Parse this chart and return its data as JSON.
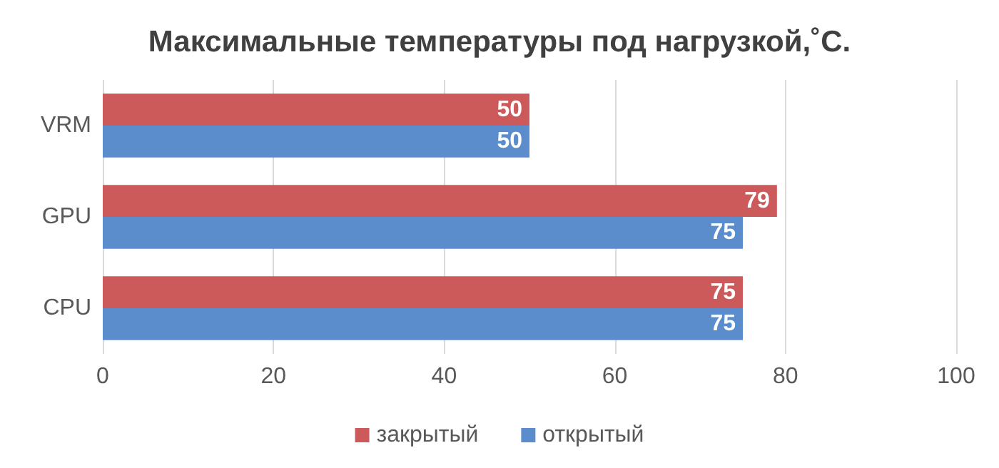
{
  "chart_data": {
    "type": "bar",
    "orientation": "horizontal",
    "title": "Максимальные температуры под нагрузкой,˚С.",
    "categories": [
      "VRM",
      "GPU",
      "CPU"
    ],
    "series": [
      {
        "name": "закрытый",
        "color": "#cd5a5a",
        "values": [
          50,
          79,
          75
        ]
      },
      {
        "name": "открытый",
        "color": "#5b8ccc",
        "values": [
          50,
          75,
          75
        ]
      }
    ],
    "xlim": [
      0,
      100
    ],
    "xticks": [
      0,
      20,
      40,
      60,
      80,
      100
    ],
    "grid": "x",
    "legend": "bottom",
    "data_labels": true
  }
}
